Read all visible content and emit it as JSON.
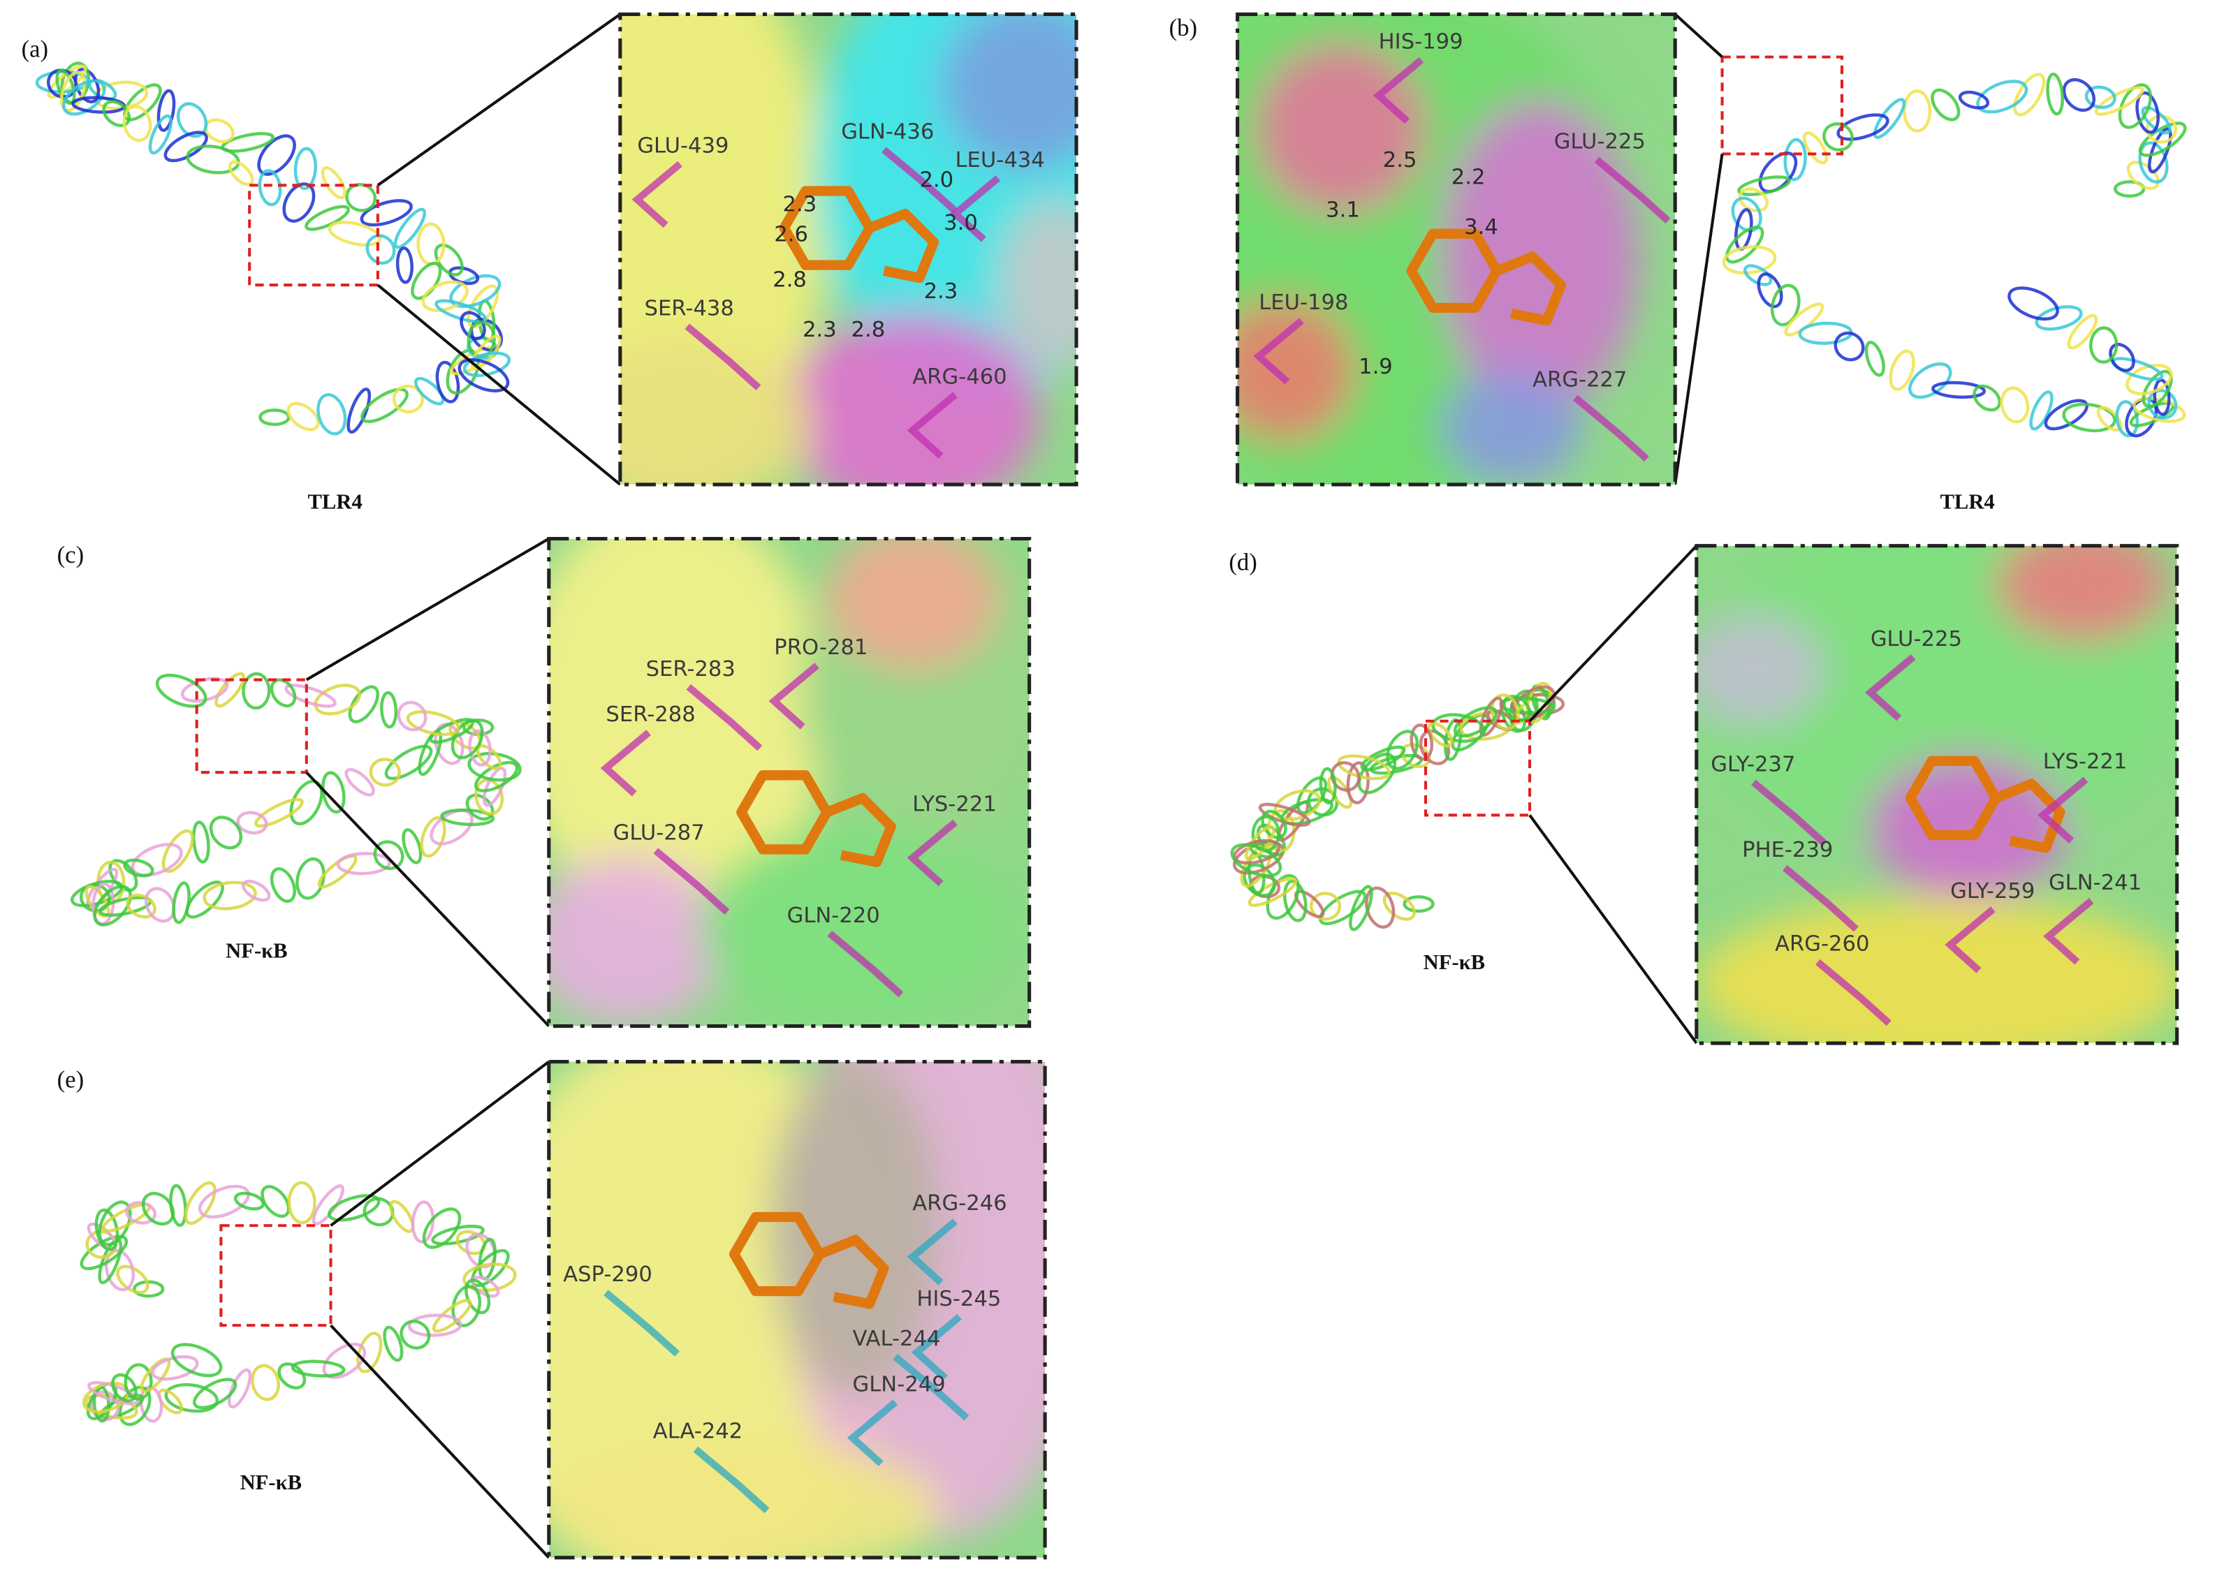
{
  "panels": [
    {
      "label": "(a)",
      "protein": "TLR4",
      "residues": [
        "GLU-439",
        "GLN-436",
        "LEU-434",
        "SER-438",
        "ARG-460"
      ],
      "distances": [
        "2.3",
        "2.0",
        "2.6",
        "3.0",
        "2.8",
        "2.3",
        "2.3",
        "2.8"
      ]
    },
    {
      "label": "(b)",
      "protein": "TLR4",
      "residues": [
        "HIS-199",
        "GLU-225",
        "LEU-198",
        "ARG-227"
      ],
      "distances": [
        "2.5",
        "2.2",
        "3.1",
        "3.4",
        "1.9"
      ]
    },
    {
      "label": "(c)",
      "protein": "NF-κB",
      "residues": [
        "PRO-281",
        "SER-283",
        "SER-288",
        "GLU-287",
        "LYS-221",
        "GLN-220"
      ],
      "distances": []
    },
    {
      "label": "(d)",
      "protein": "NF-κB",
      "residues": [
        "GLU-225",
        "GLY-237",
        "LYS-221",
        "PHE-239",
        "GLN-241",
        "ARG-260",
        "GLY-259"
      ],
      "distances": []
    },
    {
      "label": "(e)",
      "protein": "NF-κB",
      "residues": [
        "ARG-246",
        "ASP-290",
        "HIS-245",
        "VAL-244",
        "GLN-249",
        "ALA-242"
      ],
      "distances": []
    }
  ]
}
